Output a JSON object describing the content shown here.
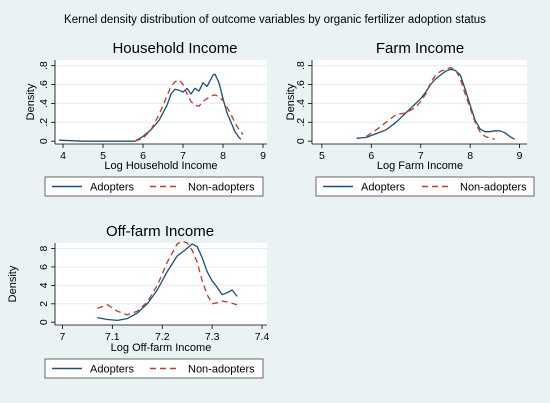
{
  "figure": {
    "title": "Kernel density distribution of outcome variables by organic fertilizer adoption status"
  },
  "colors": {
    "background": "#eaf2f3",
    "plot": "#ffffff",
    "grid": "#e6ecee",
    "adopters": "#1f4e79",
    "non_adopters": "#c0392b"
  },
  "chart_data": [
    {
      "type": "line",
      "title": "Household Income",
      "xlabel": "Log Household Income",
      "ylabel": "Density",
      "xlim": [
        3.8,
        9.1
      ],
      "ylim": [
        -0.03,
        0.86
      ],
      "xticks": [
        4,
        5,
        6,
        7,
        8,
        9
      ],
      "xtick_labels": [
        "4",
        "5",
        "6",
        "7",
        "8",
        "9"
      ],
      "yticks": [
        0,
        0.2,
        0.4,
        0.6,
        0.8
      ],
      "ytick_labels": [
        "0",
        ".2",
        ".4",
        ".6",
        ".8"
      ],
      "legend": [
        "Adopters",
        "Non-adopters"
      ],
      "series": [
        {
          "name": "Adopters",
          "style": "solid",
          "x": [
            3.9,
            4.5,
            5.0,
            5.5,
            5.8,
            6.0,
            6.2,
            6.4,
            6.6,
            6.7,
            6.8,
            6.9,
            7.0,
            7.1,
            7.2,
            7.3,
            7.4,
            7.5,
            7.6,
            7.7,
            7.75,
            7.8,
            7.9,
            8.0,
            8.1,
            8.2,
            8.3,
            8.4,
            8.45
          ],
          "y": [
            0.01,
            0.0,
            0.0,
            0.0,
            0.0,
            0.05,
            0.12,
            0.22,
            0.38,
            0.5,
            0.55,
            0.54,
            0.52,
            0.56,
            0.5,
            0.56,
            0.53,
            0.62,
            0.58,
            0.66,
            0.7,
            0.71,
            0.62,
            0.45,
            0.3,
            0.2,
            0.1,
            0.04,
            0.02
          ]
        },
        {
          "name": "Non-adopters",
          "style": "dashed",
          "x": [
            5.8,
            6.0,
            6.2,
            6.4,
            6.6,
            6.7,
            6.8,
            6.9,
            7.0,
            7.1,
            7.2,
            7.3,
            7.4,
            7.5,
            7.6,
            7.7,
            7.8,
            7.9,
            8.0,
            8.1,
            8.2,
            8.3,
            8.4,
            8.5
          ],
          "y": [
            0.0,
            0.03,
            0.12,
            0.28,
            0.48,
            0.58,
            0.63,
            0.65,
            0.6,
            0.5,
            0.42,
            0.38,
            0.37,
            0.42,
            0.45,
            0.48,
            0.49,
            0.47,
            0.43,
            0.36,
            0.28,
            0.2,
            0.12,
            0.07
          ]
        }
      ]
    },
    {
      "type": "line",
      "title": "Farm Income",
      "xlabel": "Log Farm Income",
      "ylabel": "Density",
      "xlim": [
        4.8,
        9.15
      ],
      "ylim": [
        -0.03,
        0.86
      ],
      "xticks": [
        5,
        6,
        7,
        8,
        9
      ],
      "xtick_labels": [
        "5",
        "6",
        "7",
        "8",
        "9"
      ],
      "yticks": [
        0,
        0.2,
        0.4,
        0.6,
        0.8
      ],
      "ytick_labels": [
        "0",
        ".2",
        ".4",
        ".6",
        ".8"
      ],
      "legend": [
        "Adopters",
        "Non-adopters"
      ],
      "series": [
        {
          "name": "Adopters",
          "style": "solid",
          "x": [
            5.7,
            5.9,
            6.1,
            6.3,
            6.5,
            6.7,
            6.9,
            7.0,
            7.1,
            7.2,
            7.3,
            7.4,
            7.5,
            7.6,
            7.7,
            7.8,
            7.9,
            8.0,
            8.1,
            8.2,
            8.3,
            8.4,
            8.5,
            8.6,
            8.7,
            8.8,
            8.9
          ],
          "y": [
            0.03,
            0.04,
            0.08,
            0.12,
            0.2,
            0.3,
            0.4,
            0.45,
            0.52,
            0.6,
            0.66,
            0.7,
            0.74,
            0.76,
            0.75,
            0.7,
            0.55,
            0.38,
            0.22,
            0.13,
            0.1,
            0.1,
            0.11,
            0.11,
            0.09,
            0.05,
            0.02
          ]
        },
        {
          "name": "Non-adopters",
          "style": "dashed",
          "x": [
            5.9,
            6.1,
            6.3,
            6.5,
            6.7,
            6.9,
            7.0,
            7.1,
            7.2,
            7.3,
            7.4,
            7.5,
            7.6,
            7.7,
            7.8,
            7.9,
            8.0,
            8.1,
            8.2,
            8.3,
            8.4,
            8.5
          ],
          "y": [
            0.05,
            0.12,
            0.2,
            0.28,
            0.3,
            0.36,
            0.42,
            0.5,
            0.62,
            0.7,
            0.74,
            0.76,
            0.78,
            0.76,
            0.66,
            0.5,
            0.35,
            0.2,
            0.1,
            0.05,
            0.03,
            0.02
          ]
        }
      ]
    },
    {
      "type": "line",
      "title": "Off-farm Income",
      "xlabel": "Log Off-farm Income",
      "ylabel": "Density",
      "xlim": [
        6.985,
        7.41
      ],
      "ylim": [
        -0.3,
        8.6
      ],
      "xticks": [
        7.0,
        7.1,
        7.2,
        7.3,
        7.4
      ],
      "xtick_labels": [
        "7",
        "7.1",
        "7.2",
        "7.3",
        "7.4"
      ],
      "yticks": [
        0,
        2,
        4,
        6,
        8
      ],
      "ytick_labels": [
        "0",
        "2",
        "4",
        "6",
        "8"
      ],
      "legend": [
        "Adopters",
        "Non-adopters"
      ],
      "series": [
        {
          "name": "Adopters",
          "style": "solid",
          "x": [
            7.07,
            7.09,
            7.11,
            7.13,
            7.15,
            7.17,
            7.19,
            7.21,
            7.23,
            7.245,
            7.26,
            7.27,
            7.28,
            7.29,
            7.3,
            7.31,
            7.32,
            7.33,
            7.34,
            7.35
          ],
          "y": [
            0.5,
            0.3,
            0.2,
            0.4,
            1.0,
            2.0,
            3.5,
            5.5,
            7.2,
            7.8,
            8.5,
            8.2,
            7.0,
            5.5,
            4.5,
            3.8,
            3.0,
            3.2,
            3.5,
            2.8
          ]
        },
        {
          "name": "Non-adopters",
          "style": "dashed",
          "x": [
            7.07,
            7.09,
            7.11,
            7.13,
            7.15,
            7.17,
            7.19,
            7.21,
            7.23,
            7.24,
            7.25,
            7.26,
            7.27,
            7.28,
            7.29,
            7.3,
            7.31,
            7.32,
            7.33,
            7.35
          ],
          "y": [
            1.5,
            1.9,
            1.2,
            0.8,
            1.2,
            2.2,
            4.0,
            6.5,
            8.5,
            8.8,
            8.6,
            7.8,
            6.5,
            4.5,
            3.0,
            2.0,
            2.1,
            2.3,
            2.2,
            1.9
          ]
        }
      ]
    }
  ]
}
